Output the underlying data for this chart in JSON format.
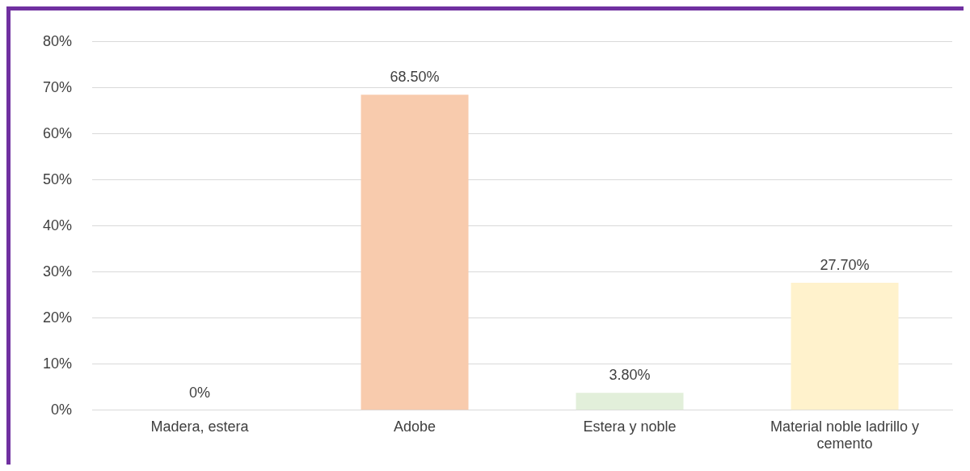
{
  "chart_data": {
    "type": "bar",
    "categories": [
      "Madera, estera",
      "Adobe",
      "Estera y noble",
      "Material noble ladrillo y cemento"
    ],
    "values": [
      0,
      68.5,
      3.8,
      27.7
    ],
    "colors": [
      "#f8cbad",
      "#f8cbad",
      "#e2efda",
      "#fff2cc"
    ],
    "value_labels": [
      "0%",
      "68.50%",
      "3.80%",
      "27.70%"
    ],
    "ylim": [
      0,
      80
    ],
    "yticks": [
      {
        "value": 0,
        "label": "0%"
      },
      {
        "value": 10,
        "label": "10%"
      },
      {
        "value": 20,
        "label": "20%"
      },
      {
        "value": 30,
        "label": "30%"
      },
      {
        "value": 40,
        "label": "40%"
      },
      {
        "value": 50,
        "label": "50%"
      },
      {
        "value": 60,
        "label": "60%"
      },
      {
        "value": 70,
        "label": "70%"
      },
      {
        "value": 80,
        "label": "80%"
      }
    ],
    "grid": "y",
    "legend": false
  }
}
